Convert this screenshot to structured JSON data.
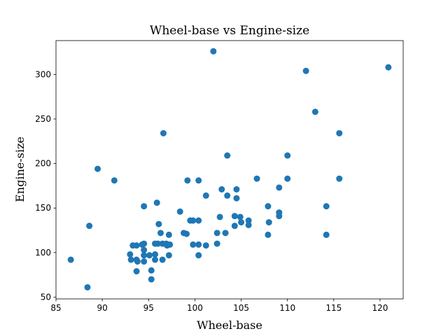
{
  "chart_data": {
    "type": "scatter",
    "title": "Wheel-base vs Engine-size",
    "xlabel": "Wheel-base",
    "ylabel": "Engine-size",
    "xlim": [
      85,
      122.5
    ],
    "ylim": [
      48,
      338
    ],
    "xticks": [
      85,
      90,
      95,
      100,
      105,
      110,
      115,
      120
    ],
    "yticks": [
      50,
      100,
      150,
      200,
      250,
      300
    ],
    "grid": false,
    "legend": "none",
    "marker_color": "#1f77b4",
    "points": [
      [
        86.6,
        92
      ],
      [
        88.4,
        61
      ],
      [
        88.6,
        130
      ],
      [
        89.5,
        194
      ],
      [
        91.3,
        181
      ],
      [
        93.0,
        98
      ],
      [
        93.1,
        92
      ],
      [
        93.3,
        108
      ],
      [
        93.7,
        92
      ],
      [
        93.7,
        79
      ],
      [
        93.8,
        90
      ],
      [
        93.7,
        108
      ],
      [
        94.3,
        109
      ],
      [
        94.5,
        97
      ],
      [
        94.5,
        103
      ],
      [
        94.5,
        110
      ],
      [
        94.5,
        90
      ],
      [
        94.5,
        152
      ],
      [
        95.1,
        97
      ],
      [
        95.3,
        70
      ],
      [
        95.3,
        80
      ],
      [
        95.7,
        92
      ],
      [
        95.7,
        98
      ],
      [
        95.7,
        110
      ],
      [
        95.9,
        156
      ],
      [
        96.0,
        110
      ],
      [
        96.1,
        132
      ],
      [
        96.3,
        122
      ],
      [
        96.5,
        110
      ],
      [
        96.5,
        92
      ],
      [
        96.6,
        234
      ],
      [
        96.9,
        110
      ],
      [
        97.0,
        108
      ],
      [
        97.2,
        97
      ],
      [
        97.3,
        109
      ],
      [
        97.2,
        120
      ],
      [
        98.4,
        146
      ],
      [
        98.8,
        122
      ],
      [
        99.1,
        121
      ],
      [
        99.2,
        181
      ],
      [
        99.5,
        136
      ],
      [
        99.8,
        136
      ],
      [
        99.8,
        109
      ],
      [
        100.4,
        181
      ],
      [
        100.4,
        136
      ],
      [
        100.4,
        97
      ],
      [
        100.4,
        109
      ],
      [
        101.2,
        164
      ],
      [
        101.2,
        108
      ],
      [
        102.0,
        326
      ],
      [
        102.4,
        110
      ],
      [
        102.4,
        122
      ],
      [
        102.7,
        140
      ],
      [
        102.9,
        171
      ],
      [
        103.3,
        122
      ],
      [
        103.5,
        209
      ],
      [
        103.5,
        164
      ],
      [
        104.3,
        141
      ],
      [
        104.3,
        130
      ],
      [
        104.5,
        171
      ],
      [
        104.5,
        161
      ],
      [
        104.9,
        140
      ],
      [
        105.0,
        134
      ],
      [
        105.8,
        131
      ],
      [
        105.8,
        136
      ],
      [
        106.7,
        183
      ],
      [
        107.9,
        152
      ],
      [
        107.9,
        120
      ],
      [
        108.0,
        134
      ],
      [
        109.1,
        141
      ],
      [
        109.1,
        145
      ],
      [
        109.1,
        173
      ],
      [
        110.0,
        183
      ],
      [
        110.0,
        209
      ],
      [
        112.0,
        304
      ],
      [
        113.0,
        258
      ],
      [
        114.2,
        152
      ],
      [
        114.2,
        120
      ],
      [
        115.6,
        234
      ],
      [
        115.6,
        183
      ],
      [
        120.9,
        308
      ]
    ]
  }
}
